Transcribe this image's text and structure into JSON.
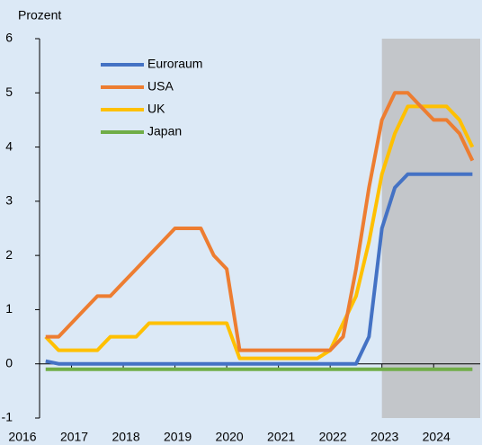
{
  "chart_data": {
    "type": "line",
    "y_label": "Prozent",
    "x": [
      2016.5,
      2016.75,
      2017,
      2017.25,
      2017.5,
      2017.75,
      2018,
      2018.25,
      2018.5,
      2018.75,
      2019,
      2019.25,
      2019.5,
      2019.75,
      2020,
      2020.25,
      2020.5,
      2020.75,
      2021,
      2021.25,
      2021.5,
      2021.75,
      2022,
      2022.25,
      2022.5,
      2022.75,
      2023,
      2023.25,
      2023.5,
      2023.75,
      2024,
      2024.25,
      2024.5,
      2024.75
    ],
    "series": [
      {
        "name": "Euroraum",
        "color": "#4472c4",
        "values": [
          0.05,
          0,
          0,
          0,
          0,
          0,
          0,
          0,
          0,
          0,
          0,
          0,
          0,
          0,
          0,
          0,
          0,
          0,
          0,
          0,
          0,
          0,
          0,
          0,
          0,
          0.5,
          2.5,
          3.25,
          3.5,
          3.5,
          3.5,
          3.5,
          3.5,
          3.5
        ]
      },
      {
        "name": "USA",
        "color": "#ed7d31",
        "values": [
          0.5,
          0.5,
          0.75,
          1,
          1.25,
          1.25,
          1.5,
          1.75,
          2,
          2.25,
          2.5,
          2.5,
          2.5,
          2,
          1.75,
          0.25,
          0.25,
          0.25,
          0.25,
          0.25,
          0.25,
          0.25,
          0.25,
          0.5,
          1.75,
          3.25,
          4.5,
          5,
          5,
          4.75,
          4.5,
          4.5,
          4.25,
          3.75
        ]
      },
      {
        "name": "UK",
        "color": "#ffc000",
        "values": [
          0.5,
          0.25,
          0.25,
          0.25,
          0.25,
          0.5,
          0.5,
          0.5,
          0.75,
          0.75,
          0.75,
          0.75,
          0.75,
          0.75,
          0.75,
          0.1,
          0.1,
          0.1,
          0.1,
          0.1,
          0.1,
          0.1,
          0.25,
          0.75,
          1.25,
          2.25,
          3.5,
          4.25,
          4.75,
          4.75,
          4.75,
          4.75,
          4.5,
          4
        ]
      },
      {
        "name": "Japan",
        "color": "#70ad47",
        "values": [
          -0.1,
          -0.1,
          -0.1,
          -0.1,
          -0.1,
          -0.1,
          -0.1,
          -0.1,
          -0.1,
          -0.1,
          -0.1,
          -0.1,
          -0.1,
          -0.1,
          -0.1,
          -0.1,
          -0.1,
          -0.1,
          -0.1,
          -0.1,
          -0.1,
          -0.1,
          -0.1,
          -0.1,
          -0.1,
          -0.1,
          -0.1,
          -0.1,
          -0.1,
          -0.1,
          -0.1,
          -0.1,
          -0.1,
          -0.1
        ]
      }
    ],
    "xlim": [
      2016,
      2024.9
    ],
    "xticks": [
      2016,
      2017,
      2018,
      2019,
      2020,
      2021,
      2022,
      2023,
      2024
    ],
    "ylim": [
      -1,
      6
    ],
    "yticks": [
      -1,
      0,
      1,
      2,
      3,
      4,
      5,
      6
    ],
    "shade": [
      2023,
      2024.9
    ],
    "shade_color": "#c3c6ca",
    "legend": "upper left"
  }
}
